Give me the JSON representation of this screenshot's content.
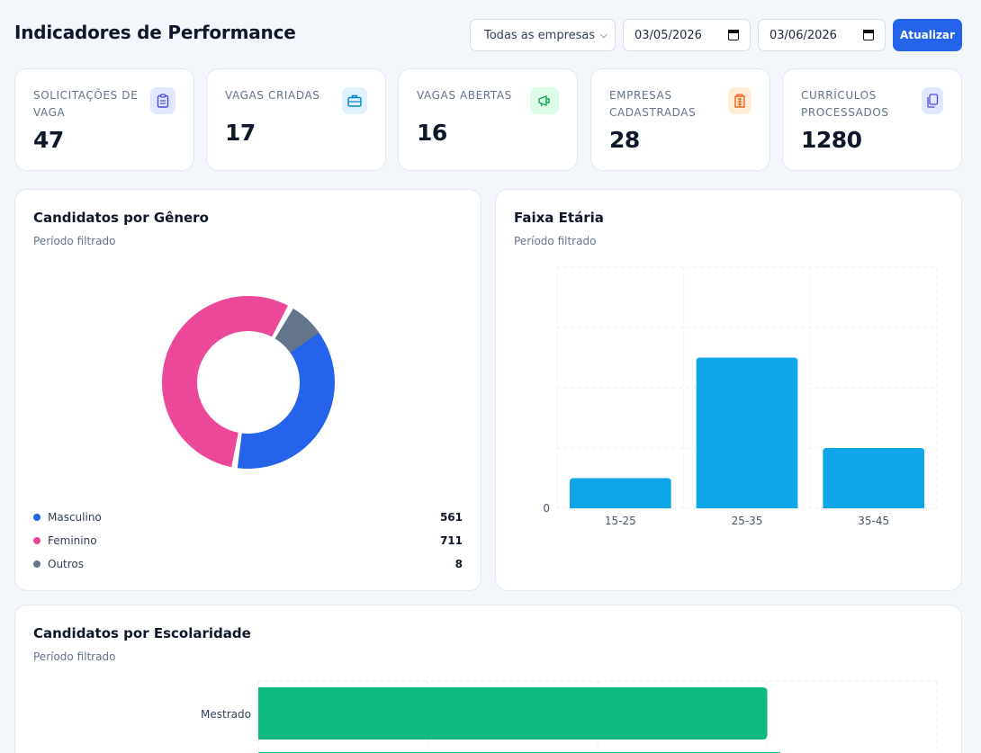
{
  "header": {
    "title": "Indicadores de Performance",
    "company_select": "Todas as empresas",
    "date_start": "03/05/2026",
    "date_end": "03/06/2026",
    "update_label": "Atualizar"
  },
  "kpis": [
    {
      "label": "Solicitações de vaga",
      "value": "47",
      "icon": "clipboard-icon",
      "color": "#4f46e5"
    },
    {
      "label": "Vagas criadas",
      "value": "17",
      "icon": "briefcase-icon",
      "color": "#0284c7"
    },
    {
      "label": "Vagas abertas",
      "value": "16",
      "icon": "megaphone-icon",
      "color": "#16a34a"
    },
    {
      "label": "Empresas cadastradas",
      "value": "28",
      "icon": "building-icon",
      "color": "#ea580c"
    },
    {
      "label": "Currículos processados",
      "value": "1280",
      "icon": "documents-icon",
      "color": "#4f46e5"
    }
  ],
  "gender_card": {
    "title": "Candidatos por Gênero",
    "subtitle": "Período filtrado"
  },
  "age_card": {
    "title": "Faixa Etária",
    "subtitle": "Período filtrado"
  },
  "education_card": {
    "title": "Candidatos por Escolaridade",
    "subtitle": "Período filtrado"
  },
  "chart_data": [
    {
      "type": "pie",
      "title": "Candidatos por Gênero",
      "categories": [
        "Masculino",
        "Feminino",
        "Outros"
      ],
      "values": [
        561,
        711,
        8
      ],
      "colors": [
        "#2563eb",
        "#ec4899",
        "#64748b"
      ],
      "legend": "bottom"
    },
    {
      "type": "bar",
      "title": "Faixa Etária",
      "categories": [
        "15-25",
        "25-35",
        "35-45"
      ],
      "values": [
        5,
        25,
        10
      ],
      "y_tick_labels": [
        "0"
      ],
      "ylim": [
        0,
        40
      ],
      "grid": true,
      "color": "#0ea5e9"
    },
    {
      "type": "bar",
      "orientation": "horizontal",
      "title": "Candidatos por Escolaridade",
      "categories": [
        "Mestrado"
      ],
      "values": [
        300
      ],
      "xlim": [
        0,
        400
      ],
      "grid": true,
      "color": "#10b981"
    }
  ]
}
